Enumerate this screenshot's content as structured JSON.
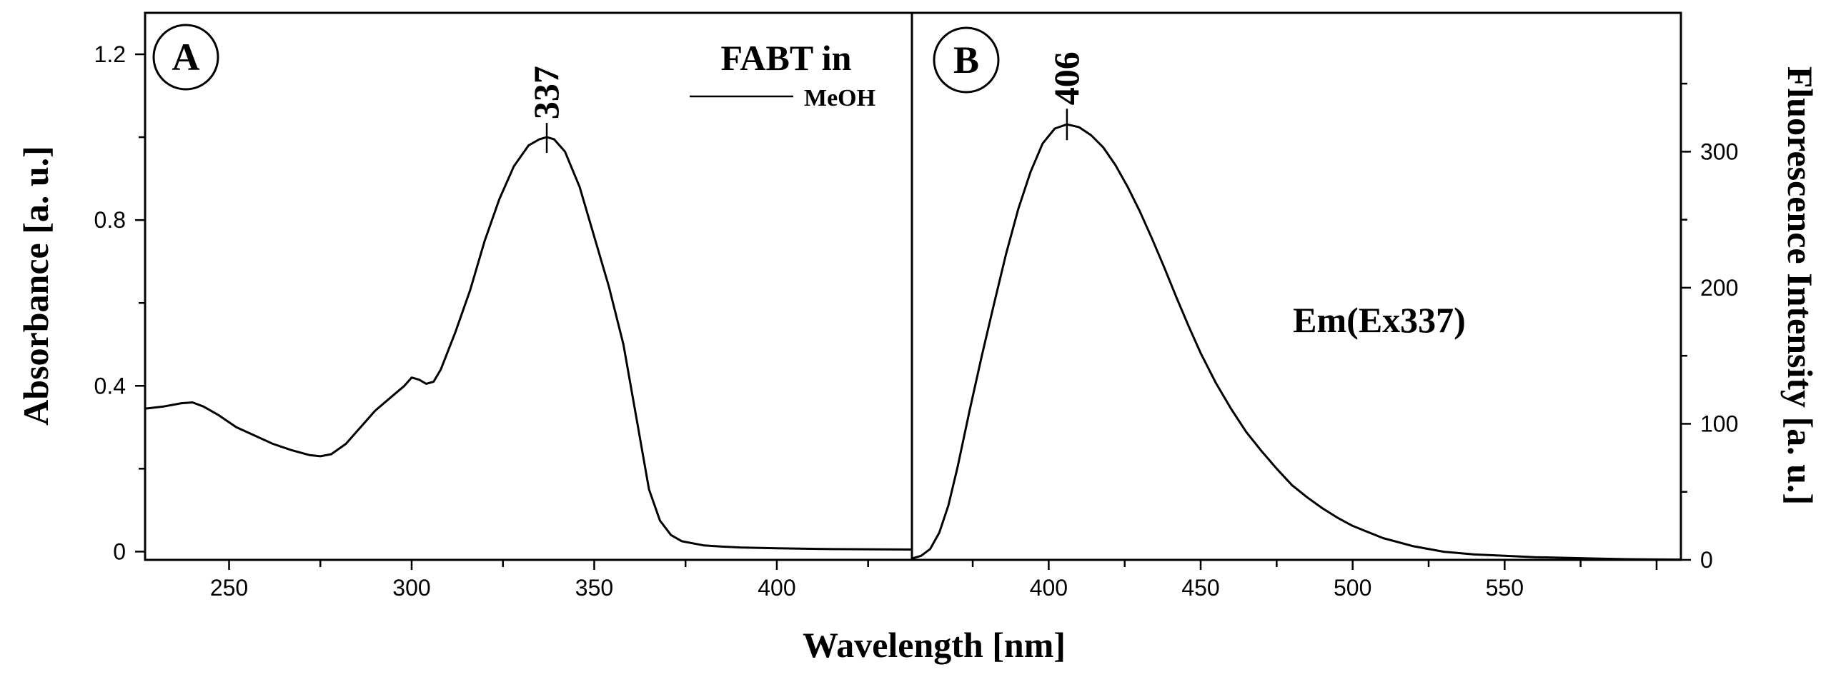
{
  "chart_data": [
    {
      "panel": "A",
      "type": "line",
      "xlabel": "Wavelength [nm]",
      "ylabel": "Absorbance [a. u.]",
      "xlim": [
        227,
        437
      ],
      "ylim": [
        -0.02,
        1.3
      ],
      "xticks": [
        250,
        300,
        350,
        400
      ],
      "yticks": [
        0,
        0.4,
        0.8,
        1.2
      ],
      "ytick_labels": [
        "0",
        "0.4",
        "0.8",
        "1.2"
      ],
      "legend_title": "FABT in",
      "legend_label": "MeOH",
      "peak_label": "337",
      "peak_x": 337,
      "series": [
        {
          "name": "MeOH",
          "x": [
            227,
            232,
            237,
            240,
            243,
            247,
            252,
            257,
            262,
            267,
            272,
            275,
            278,
            282,
            286,
            290,
            294,
            298,
            300,
            302,
            304,
            306,
            308,
            312,
            316,
            320,
            324,
            328,
            332,
            335,
            337,
            339,
            342,
            346,
            350,
            354,
            358,
            362,
            365,
            368,
            371,
            374,
            377,
            380,
            385,
            390,
            400,
            415,
            437
          ],
          "y": [
            0.345,
            0.35,
            0.358,
            0.36,
            0.35,
            0.33,
            0.3,
            0.28,
            0.26,
            0.245,
            0.233,
            0.23,
            0.235,
            0.26,
            0.3,
            0.34,
            0.37,
            0.4,
            0.42,
            0.415,
            0.405,
            0.41,
            0.44,
            0.53,
            0.63,
            0.75,
            0.85,
            0.93,
            0.98,
            0.995,
            1.0,
            0.995,
            0.965,
            0.88,
            0.76,
            0.64,
            0.5,
            0.3,
            0.15,
            0.075,
            0.04,
            0.025,
            0.02,
            0.015,
            0.012,
            0.01,
            0.008,
            0.006,
            0.005
          ]
        }
      ]
    },
    {
      "panel": "B",
      "type": "line",
      "xlabel": "Wavelength [nm]",
      "ylabel": "Fluorescence Intensity [a. u.]",
      "xlim": [
        355,
        608
      ],
      "ylim": [
        0,
        402
      ],
      "xticks": [
        400,
        450,
        500,
        550
      ],
      "yticks": [
        0,
        100,
        200,
        300
      ],
      "annotation": "Em(Ex337)",
      "peak_label": "406",
      "peak_x": 406,
      "series": [
        {
          "name": "Em(Ex337)",
          "x": [
            355,
            358,
            361,
            364,
            367,
            370,
            374,
            378,
            382,
            386,
            390,
            394,
            398,
            402,
            406,
            410,
            414,
            418,
            422,
            426,
            430,
            434,
            438,
            442,
            446,
            450,
            455,
            460,
            465,
            470,
            475,
            480,
            485,
            490,
            495,
            500,
            510,
            520,
            530,
            540,
            550,
            560,
            570,
            580,
            590,
            600,
            608
          ],
          "y": [
            1,
            3,
            8,
            20,
            40,
            68,
            110,
            150,
            188,
            225,
            258,
            285,
            306,
            317,
            320,
            318,
            312,
            303,
            290,
            274,
            256,
            236,
            215,
            193,
            172,
            152,
            130,
            111,
            94,
            80,
            67,
            55,
            46,
            38,
            31,
            25,
            16,
            10,
            6,
            4,
            3,
            2,
            1.5,
            1,
            0.5,
            0.3,
            0.2
          ]
        }
      ]
    }
  ]
}
